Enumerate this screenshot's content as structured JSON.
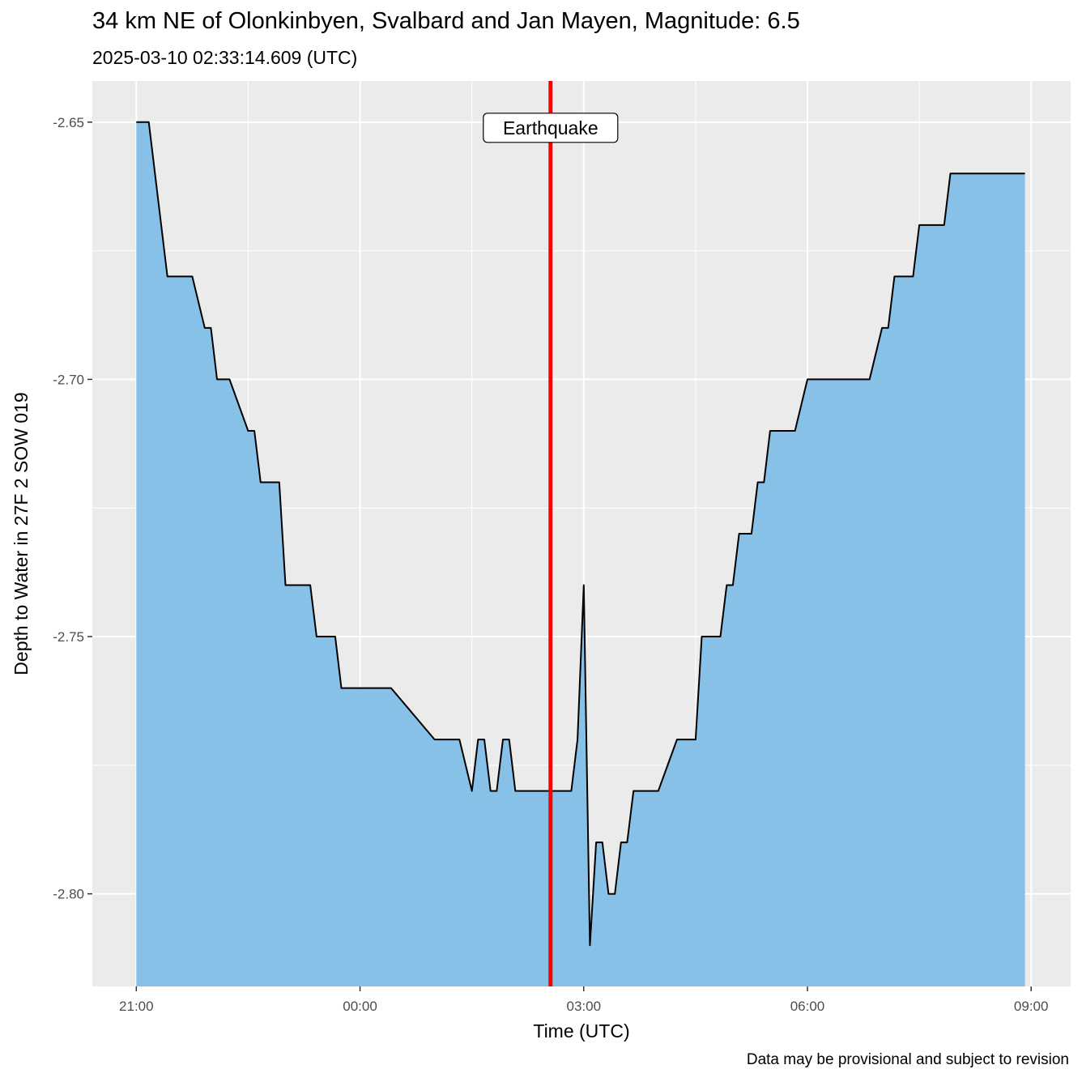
{
  "chart_data": {
    "type": "area",
    "title": "34 km NE of Olonkinbyen, Svalbard and Jan Mayen, Magnitude: 6.5",
    "subtitle": "2025-03-10 02:33:14.609 (UTC)",
    "caption": "Data may be provisional and subject to revision",
    "xlabel": "Time (UTC)",
    "ylabel": "Depth to Water in 27F 2 SOW 019",
    "x_unit": "hours since 21:00 UTC",
    "xlim": [
      -0.59,
      12.53
    ],
    "ylim": [
      -2.818,
      -2.642
    ],
    "x_ticks": [
      {
        "value": 0,
        "label": "21:00"
      },
      {
        "value": 3,
        "label": "00:00"
      },
      {
        "value": 6,
        "label": "03:00"
      },
      {
        "value": 9,
        "label": "06:00"
      },
      {
        "value": 12,
        "label": "09:00"
      }
    ],
    "y_ticks": [
      {
        "value": -2.65,
        "label": "-2.65"
      },
      {
        "value": -2.7,
        "label": "-2.70"
      },
      {
        "value": -2.75,
        "label": "-2.75"
      },
      {
        "value": -2.8,
        "label": "-2.80"
      }
    ],
    "grid": true,
    "fill_color": "#87c1e8",
    "line_color": "#000000",
    "event": {
      "x": 5.555,
      "label": "Earthquake",
      "color": "#ff0000"
    },
    "series": [
      {
        "x": [
          0,
          0.167,
          0.417,
          0.5,
          0.75,
          0.917,
          1.0,
          1.083,
          1.167,
          1.25,
          1.5,
          1.583,
          1.667,
          1.75,
          1.833,
          1.917,
          2.0,
          2.25,
          2.333,
          2.417,
          2.667,
          2.75,
          2.833,
          3.0,
          3.083,
          3.167,
          3.417,
          4.0,
          4.083,
          4.25,
          4.333,
          4.5,
          4.583,
          4.667,
          4.75,
          4.833,
          4.917,
          5.0,
          5.083,
          5.167,
          5.25,
          5.417,
          5.583,
          5.75,
          5.833,
          5.917,
          6.0,
          6.083,
          6.167,
          6.25,
          6.333,
          6.417,
          6.5,
          6.583,
          6.667,
          6.75,
          6.833,
          6.917,
          7.0,
          7.25,
          7.5,
          7.583,
          7.667,
          7.833,
          7.917,
          8.0,
          8.083,
          8.167,
          8.25,
          8.333,
          8.417,
          8.5,
          8.583,
          8.667,
          8.75,
          8.833,
          9.0,
          9.083,
          9.167,
          9.333,
          9.417,
          9.5,
          9.833,
          10.0,
          10.083,
          10.167,
          10.25,
          10.417,
          10.5,
          10.583,
          10.833,
          10.917,
          11.0,
          11.083,
          11.5,
          11.583,
          11.667,
          11.75,
          11.833,
          11.917
        ],
        "y": [
          -2.65,
          -2.65,
          -2.68,
          -2.68,
          -2.68,
          -2.69,
          -2.69,
          -2.7,
          -2.7,
          -2.7,
          -2.71,
          -2.71,
          -2.72,
          -2.72,
          -2.72,
          -2.72,
          -2.74,
          -2.74,
          -2.74,
          -2.75,
          -2.75,
          -2.76,
          -2.76,
          -2.76,
          -2.76,
          -2.76,
          -2.76,
          -2.77,
          -2.77,
          -2.77,
          -2.77,
          -2.78,
          -2.77,
          -2.77,
          -2.78,
          -2.78,
          -2.77,
          -2.77,
          -2.78,
          -2.78,
          -2.78,
          -2.78,
          -2.78,
          -2.78,
          -2.78,
          -2.77,
          -2.74,
          -2.81,
          -2.79,
          -2.79,
          -2.8,
          -2.8,
          -2.79,
          -2.79,
          -2.78,
          -2.78,
          -2.78,
          -2.78,
          -2.78,
          -2.77,
          -2.77,
          -2.75,
          -2.75,
          -2.75,
          -2.74,
          -2.74,
          -2.73,
          -2.73,
          -2.73,
          -2.72,
          -2.72,
          -2.71,
          -2.71,
          -2.71,
          -2.71,
          -2.71,
          -2.7,
          -2.7,
          -2.7,
          -2.7,
          -2.7,
          -2.7,
          -2.7,
          -2.69,
          -2.69,
          -2.68,
          -2.68,
          -2.68,
          -2.67,
          -2.67,
          -2.67,
          -2.66,
          -2.66,
          -2.66,
          -2.66,
          -2.66,
          -2.66,
          -2.66,
          -2.66,
          -2.66
        ]
      }
    ]
  }
}
